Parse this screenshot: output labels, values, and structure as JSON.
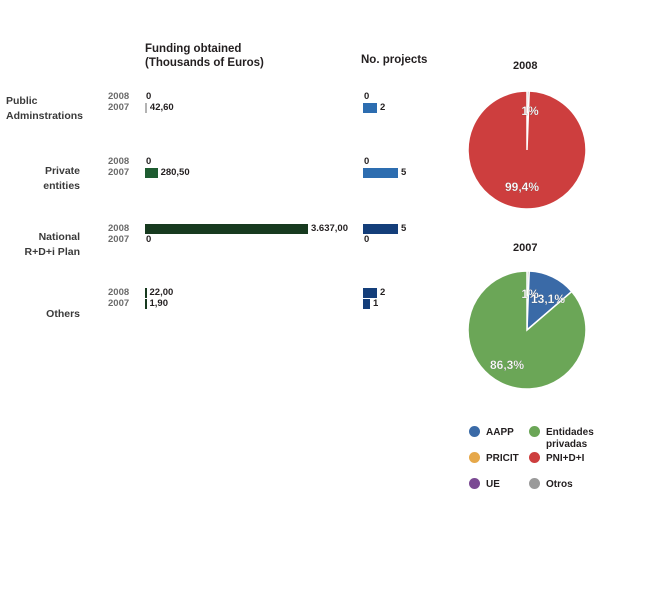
{
  "chart_data": [
    {
      "type": "bar",
      "title": "Funding obtained\n(Thousands of Euros)",
      "categories": [
        "Public\nAdminstrations",
        "Private\nentities",
        "National\nR+D+i Plan",
        "Others"
      ],
      "series": [
        {
          "name": "2008",
          "values": [
            0,
            0,
            3637.0,
            22.0
          ],
          "labels": [
            "0",
            "0",
            "3.637,00",
            "22,00"
          ]
        },
        {
          "name": "2007",
          "values": [
            42.6,
            280.5,
            0,
            1.9
          ],
          "labels": [
            "42,60",
            "280,50",
            "0",
            "1,90"
          ]
        }
      ],
      "bar_colors": [
        "#b3b3b3",
        "#1e5c31",
        "#173a1f",
        "#173a1f"
      ],
      "xlim": [
        0,
        3637
      ]
    },
    {
      "type": "bar",
      "title": "No. projects",
      "categories": [
        "Public\nAdminstrations",
        "Private\nentities",
        "National\nR+D+i Plan",
        "Others"
      ],
      "series": [
        {
          "name": "2008",
          "values": [
            0,
            0,
            5,
            2
          ],
          "labels": [
            "0",
            "0",
            "5",
            "2"
          ]
        },
        {
          "name": "2007",
          "values": [
            2,
            5,
            0,
            1
          ],
          "labels": [
            "2",
            "5",
            "0",
            "1"
          ]
        }
      ],
      "bar_colors": [
        "#2d6db0",
        "#2d6db0",
        "#143e7a",
        "#143e7a"
      ],
      "xlim": [
        0,
        5
      ]
    },
    {
      "type": "pie",
      "title": "2008",
      "slices": [
        {
          "name": "Otros",
          "value": 0.6,
          "label": "1%",
          "color": "#9a9a9a"
        },
        {
          "name": "PNI+D+I",
          "value": 99.4,
          "label": "99,4%",
          "color": "#cd3e3e"
        }
      ]
    },
    {
      "type": "pie",
      "title": "2007",
      "slices": [
        {
          "name": "Otros",
          "value": 0.6,
          "label": "1%",
          "color": "#9a9a9a"
        },
        {
          "name": "AAPP",
          "value": 13.1,
          "label": "13,1%",
          "color": "#3a6aa7"
        },
        {
          "name": "Entidades privadas",
          "value": 86.3,
          "label": "86,3%",
          "color": "#6ba657"
        }
      ]
    }
  ],
  "legend": {
    "items": [
      {
        "label": "AAPP",
        "color": "#3a6aa7"
      },
      {
        "label": "Entidades\nprivadas",
        "color": "#6ba657"
      },
      {
        "label": "PRICIT",
        "color": "#e6a84a"
      },
      {
        "label": "PNI+D+I",
        "color": "#cd3e3e"
      },
      {
        "label": "UE",
        "color": "#7b4a93"
      },
      {
        "label": "Otros",
        "color": "#9a9a9a"
      }
    ]
  }
}
